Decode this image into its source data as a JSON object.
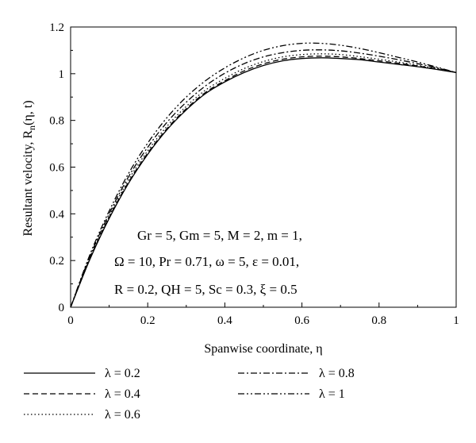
{
  "chart_data": {
    "type": "line",
    "xlabel": "Spanwise coordinate, η",
    "ylabel": "Resultant velocity, R",
    "ylabel_sub": "n",
    "ylabel_args": "(η, t)",
    "xlim": [
      0,
      1
    ],
    "ylim": [
      0,
      1.2
    ],
    "xticks": [
      0,
      0.2,
      0.4,
      0.6,
      0.8,
      1
    ],
    "xtick_labels": [
      "0",
      "0.2",
      "0.4",
      "0.6",
      "0.8",
      "1"
    ],
    "yticks": [
      0,
      0.2,
      0.4,
      0.6,
      0.8,
      1,
      1.2
    ],
    "ytick_labels": [
      "0",
      "0.2",
      "0.4",
      "0.6",
      "0.8",
      "1",
      "1.2"
    ],
    "grid": false,
    "legend_position": "bottom",
    "annotations": [
      "Gr = 5, Gm = 5, M = 2, m = 1,",
      "Ω = 10, Pr = 0.71, ω = 5, ε = 0.01,",
      "R = 0.2, QH = 5, Sc = 0.3, ξ = 0.5"
    ],
    "x": [
      0,
      0.05,
      0.1,
      0.15,
      0.2,
      0.25,
      0.3,
      0.35,
      0.4,
      0.45,
      0.5,
      0.55,
      0.6,
      0.65,
      0.7,
      0.75,
      0.8,
      0.85,
      0.9,
      0.95,
      1.0
    ],
    "series": [
      {
        "name": "λ = 0.2",
        "dash": "solid",
        "values": [
          0,
          0.205,
          0.38,
          0.53,
          0.655,
          0.76,
          0.845,
          0.915,
          0.965,
          1.005,
          1.035,
          1.055,
          1.065,
          1.068,
          1.065,
          1.06,
          1.05,
          1.04,
          1.03,
          1.018,
          1.005
        ]
      },
      {
        "name": "λ = 0.4",
        "dash": "dashed",
        "values": [
          0,
          0.208,
          0.385,
          0.535,
          0.66,
          0.765,
          0.85,
          0.92,
          0.97,
          1.012,
          1.042,
          1.062,
          1.072,
          1.075,
          1.072,
          1.065,
          1.055,
          1.045,
          1.033,
          1.02,
          1.005
        ]
      },
      {
        "name": "λ = 0.6",
        "dash": "dotted",
        "values": [
          0,
          0.212,
          0.39,
          0.545,
          0.67,
          0.775,
          0.86,
          0.93,
          0.98,
          1.022,
          1.052,
          1.072,
          1.082,
          1.085,
          1.082,
          1.073,
          1.062,
          1.05,
          1.036,
          1.022,
          1.005
        ]
      },
      {
        "name": "λ = 0.8",
        "dash": "dash-dot",
        "values": [
          0,
          0.218,
          0.4,
          0.558,
          0.685,
          0.792,
          0.878,
          0.948,
          1.002,
          1.043,
          1.072,
          1.09,
          1.1,
          1.102,
          1.098,
          1.088,
          1.075,
          1.06,
          1.043,
          1.025,
          1.005
        ]
      },
      {
        "name": "λ = 1",
        "dash": "dash-dot-dot",
        "values": [
          0,
          0.225,
          0.412,
          0.572,
          0.703,
          0.812,
          0.9,
          0.97,
          1.025,
          1.068,
          1.1,
          1.12,
          1.13,
          1.13,
          1.122,
          1.108,
          1.09,
          1.07,
          1.05,
          1.028,
          1.005
        ]
      }
    ]
  }
}
